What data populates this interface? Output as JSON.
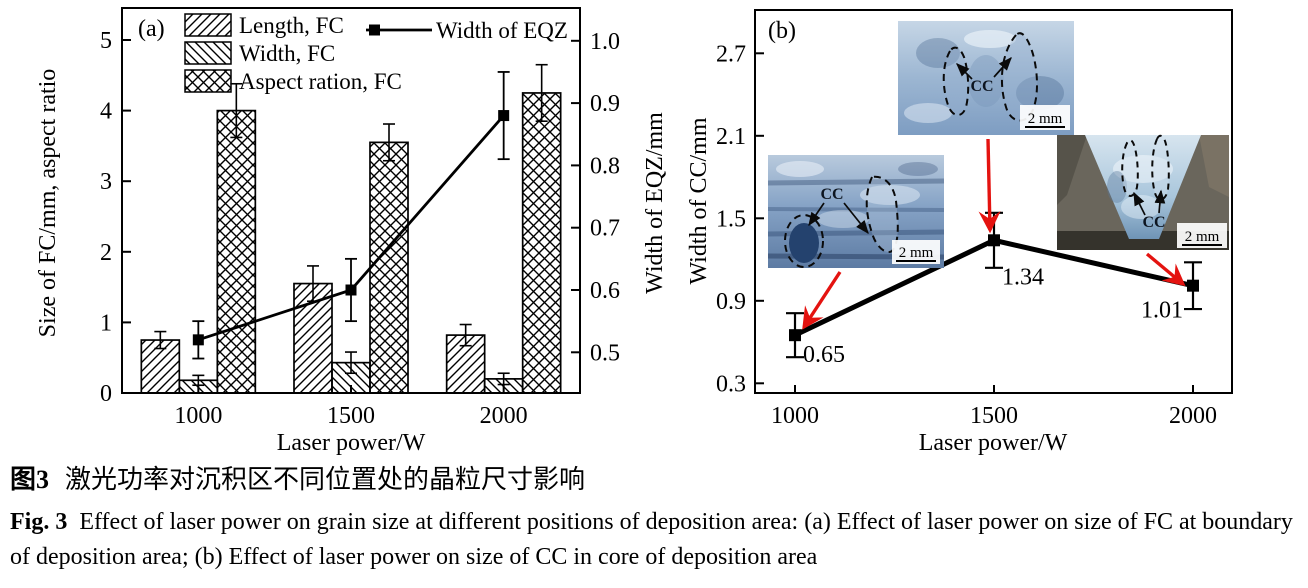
{
  "caption": {
    "zh_label": "图3",
    "zh_text": "激光功率对沉积区不同位置处的晶粒尺寸影响",
    "en_label": "Fig. 3",
    "en_text": "Effect of laser power on grain size at different positions of deposition area: (a) Effect of laser power on size of FC at boundary of deposition area; (b) Effect of laser power on size of CC in core of deposition area"
  },
  "chart_data": [
    {
      "type": "bar",
      "panel_label": "(a)",
      "categories": [
        "1000",
        "1500",
        "2000"
      ],
      "xlabel": "Laser power/W",
      "ylabel_left": "Size of FC/mm, aspect ratio",
      "ylabel_right": "Width of EQZ/mm",
      "yticks_left": [
        0,
        1,
        2,
        3,
        4,
        5
      ],
      "ylim_left": [
        0,
        5.45
      ],
      "yticks_right": [
        0.5,
        0.6,
        0.7,
        0.8,
        0.9,
        1.0
      ],
      "ylim_right": [
        0.44,
        1.05
      ],
      "grid": false,
      "legend_position": "top-left",
      "series": [
        {
          "name": "Length, FC",
          "hatch": "diag-right",
          "values": [
            0.75,
            1.55,
            0.82
          ],
          "errors": [
            0.12,
            0.25,
            0.15
          ]
        },
        {
          "name": "Width, FC",
          "hatch": "diag-left",
          "values": [
            0.18,
            0.43,
            0.2
          ],
          "errors": [
            0.07,
            0.15,
            0.08
          ]
        },
        {
          "name": "Aspect ration, FC",
          "hatch": "cross",
          "values": [
            4.0,
            3.55,
            4.25
          ],
          "errors": [
            0.38,
            0.26,
            0.4
          ]
        }
      ],
      "line_series": {
        "name": "Width of EQZ",
        "axis": "right",
        "marker": "square",
        "values": [
          0.52,
          0.6,
          0.88
        ],
        "errors": [
          0.03,
          0.05,
          0.07
        ],
        "color": "#000000"
      }
    },
    {
      "type": "line",
      "panel_label": "(b)",
      "x": [
        1000,
        1500,
        2000
      ],
      "values": [
        0.65,
        1.34,
        1.01
      ],
      "errors": [
        0.16,
        0.2,
        0.17
      ],
      "point_labels": [
        "0.65",
        "1.34",
        "1.01"
      ],
      "xticks": [
        "1000",
        "1500",
        "2000"
      ],
      "xlim": [
        900,
        2100
      ],
      "yticks": [
        0.3,
        0.9,
        1.5,
        2.1,
        2.7
      ],
      "ylim": [
        0.23,
        3.02
      ],
      "xlabel": "Laser power/W",
      "ylabel": "Width of CC/mm",
      "marker": "square",
      "line_color": "#000000",
      "annotation_arrow_color": "#e41310",
      "insets": [
        {
          "label": "CC",
          "scale": "2 mm",
          "position": "middle-left"
        },
        {
          "label": "CC",
          "scale": "2 mm",
          "position": "top-center"
        },
        {
          "label": "CC",
          "scale": "2 mm",
          "position": "middle-right"
        }
      ]
    }
  ]
}
